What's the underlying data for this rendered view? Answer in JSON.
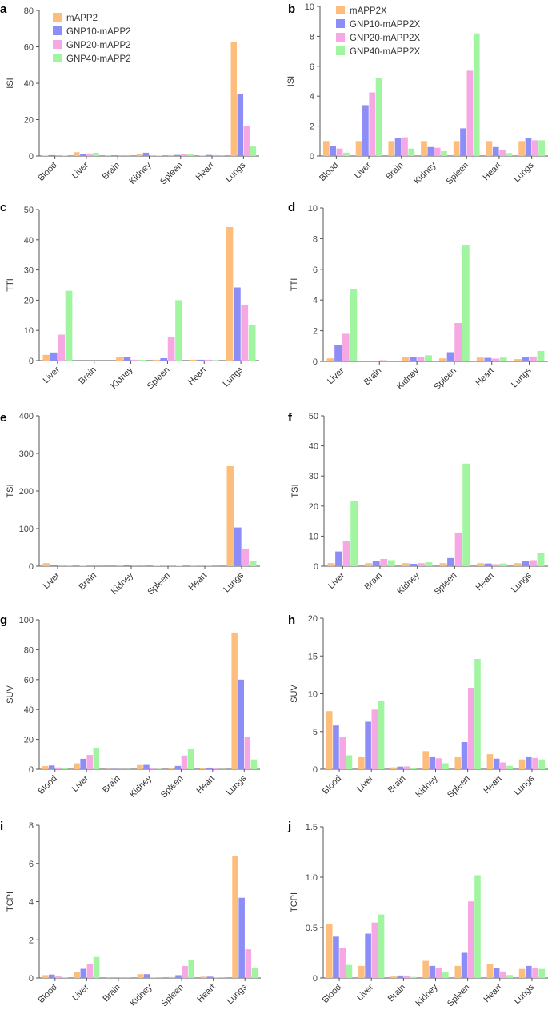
{
  "colors": {
    "series": [
      "#fdbd7d",
      "#8d8df7",
      "#f5a8e3",
      "#a1f5a1"
    ]
  },
  "chart_data": [
    {
      "panel": "a",
      "type": "bar",
      "ylabel": "ISI",
      "ylim": [
        0,
        80
      ],
      "yticks": [
        0,
        20,
        40,
        60,
        80
      ],
      "categories": [
        "Blood",
        "Liver",
        "Brain",
        "Kidney",
        "Spleen",
        "Heart",
        "Lungs"
      ],
      "legend": "top-left",
      "series": [
        {
          "name": "mAPP2",
          "values": [
            0.2,
            2.1,
            0.4,
            1.0,
            0.5,
            0.3,
            62.8
          ]
        },
        {
          "name": "GNP10-mAPP2",
          "values": [
            0.5,
            1.2,
            0.4,
            1.8,
            0.6,
            0.6,
            34.2
          ]
        },
        {
          "name": "GNP20-mAPP2",
          "values": [
            0.1,
            1.4,
            0.1,
            0.4,
            1.0,
            0.5,
            16.5
          ]
        },
        {
          "name": "GNP40-mAPP2",
          "values": [
            0.2,
            1.8,
            0.1,
            0.2,
            0.9,
            0.1,
            5.2
          ]
        }
      ]
    },
    {
      "panel": "b",
      "type": "bar",
      "ylabel": "ISI",
      "ylim": [
        0,
        10
      ],
      "yticks": [
        0,
        2,
        4,
        6,
        8,
        10
      ],
      "categories": [
        "Blood",
        "Liver",
        "Brain",
        "Kidney",
        "Spleen",
        "Heart",
        "Lungs"
      ],
      "legend": "top-left",
      "series": [
        {
          "name": "mAPP2X",
          "values": [
            1.0,
            1.0,
            1.0,
            1.0,
            1.0,
            1.0,
            1.0
          ]
        },
        {
          "name": "GNP10-mAPP2X",
          "values": [
            0.65,
            3.4,
            1.2,
            0.6,
            1.85,
            0.6,
            1.18
          ]
        },
        {
          "name": "GNP20-mAPP2X",
          "values": [
            0.5,
            4.25,
            1.25,
            0.55,
            5.7,
            0.4,
            1.05
          ]
        },
        {
          "name": "GNP40-mAPP2X",
          "values": [
            0.22,
            5.2,
            0.5,
            0.32,
            8.2,
            0.2,
            1.05
          ]
        }
      ]
    },
    {
      "panel": "c",
      "type": "bar",
      "ylabel": "TTI",
      "ylim": [
        0,
        50
      ],
      "yticks": [
        0,
        10,
        20,
        30,
        40,
        50
      ],
      "categories": [
        "Liver",
        "Brain",
        "Kidney",
        "Spleen",
        "Heart",
        "Lungs"
      ],
      "series": [
        {
          "name": "mAPP2",
          "values": [
            1.9,
            0.0,
            1.3,
            0.3,
            0.3,
            44.2
          ]
        },
        {
          "name": "GNP10-mAPP2",
          "values": [
            2.7,
            0.0,
            1.1,
            0.8,
            0.3,
            24.2
          ]
        },
        {
          "name": "GNP20-mAPP2",
          "values": [
            8.6,
            0.0,
            0.3,
            7.8,
            0.3,
            18.4
          ]
        },
        {
          "name": "GNP40-mAPP2",
          "values": [
            23.1,
            0.0,
            0.3,
            20.0,
            0.1,
            11.7
          ]
        }
      ]
    },
    {
      "panel": "d",
      "type": "bar",
      "ylabel": "TTI",
      "ylim": [
        0,
        10
      ],
      "yticks": [
        0,
        2,
        4,
        6,
        8,
        10
      ],
      "categories": [
        "Liver",
        "Brain",
        "Kidney",
        "Spleen",
        "Heart",
        "Lungs"
      ],
      "series": [
        {
          "name": "mAPP2X",
          "values": [
            0.2,
            0.03,
            0.3,
            0.2,
            0.25,
            0.15
          ]
        },
        {
          "name": "GNP10-mAPP2X",
          "values": [
            1.07,
            0.05,
            0.27,
            0.6,
            0.23,
            0.28
          ]
        },
        {
          "name": "GNP20-mAPP2X",
          "values": [
            1.8,
            0.08,
            0.3,
            2.5,
            0.18,
            0.32
          ]
        },
        {
          "name": "GNP40-mAPP2X",
          "values": [
            4.7,
            0.05,
            0.4,
            7.6,
            0.25,
            0.68
          ]
        }
      ]
    },
    {
      "panel": "e",
      "type": "bar",
      "ylabel": "TSI",
      "ylim": [
        0,
        400
      ],
      "yticks": [
        0,
        100,
        200,
        300,
        400
      ],
      "categories": [
        "Liver",
        "Brain",
        "Kidney",
        "Spleen",
        "Heart",
        "Lungs"
      ],
      "series": [
        {
          "name": "mAPP2",
          "values": [
            8.0,
            1.0,
            3.5,
            1.0,
            0.8,
            266.0
          ]
        },
        {
          "name": "GNP10-mAPP2",
          "values": [
            2.5,
            0.3,
            3.0,
            1.0,
            0.8,
            103.0
          ]
        },
        {
          "name": "GNP20-mAPP2",
          "values": [
            4.0,
            0.2,
            0.5,
            2.5,
            0.8,
            47.0
          ]
        },
        {
          "name": "GNP40-mAPP2",
          "values": [
            4.0,
            0.1,
            0.3,
            1.0,
            0.2,
            13.0
          ]
        }
      ]
    },
    {
      "panel": "f",
      "type": "bar",
      "ylabel": "TSI",
      "ylim": [
        0,
        50
      ],
      "yticks": [
        0,
        10,
        20,
        30,
        40,
        50
      ],
      "categories": [
        "Liver",
        "Brain",
        "Kidney",
        "Spleen",
        "Heart",
        "Lungs"
      ],
      "series": [
        {
          "name": "mAPP2X",
          "values": [
            1.0,
            1.0,
            1.0,
            1.0,
            1.0,
            1.0
          ]
        },
        {
          "name": "GNP10-mAPP2X",
          "values": [
            4.9,
            1.8,
            0.8,
            2.7,
            0.9,
            1.7
          ]
        },
        {
          "name": "GNP20-mAPP2X",
          "values": [
            8.4,
            2.4,
            1.0,
            11.2,
            0.7,
            2.0
          ]
        },
        {
          "name": "GNP40-mAPP2X",
          "values": [
            21.7,
            2.0,
            1.3,
            34.1,
            0.9,
            4.3
          ]
        }
      ]
    },
    {
      "panel": "g",
      "type": "bar",
      "ylabel": "SUV",
      "ylim": [
        0,
        100
      ],
      "yticks": [
        0,
        20,
        40,
        60,
        80,
        100
      ],
      "categories": [
        "Blood",
        "Liver",
        "Brain",
        "Kidney",
        "Spleen",
        "Heart",
        "Lungs"
      ],
      "series": [
        {
          "name": "mAPP2",
          "values": [
            2.1,
            4.0,
            0.1,
            2.8,
            0.8,
            1.0,
            91.5
          ]
        },
        {
          "name": "GNP10-mAPP2",
          "values": [
            2.5,
            7.0,
            0.1,
            2.9,
            2.2,
            1.1,
            60.0
          ]
        },
        {
          "name": "GNP20-mAPP2",
          "values": [
            1.2,
            9.6,
            0.1,
            0.5,
            9.2,
            0.5,
            21.4
          ]
        },
        {
          "name": "GNP40-mAPP2",
          "values": [
            0.6,
            14.5,
            0.1,
            0.2,
            13.5,
            0.1,
            6.6
          ]
        }
      ]
    },
    {
      "panel": "h",
      "type": "bar",
      "ylabel": "SUV",
      "ylim": [
        0,
        20
      ],
      "yticks": [
        0,
        5,
        10,
        15,
        20
      ],
      "categories": [
        "Blood",
        "Liver",
        "Brain",
        "Kidney",
        "Spleen",
        "Heart",
        "Lungs"
      ],
      "series": [
        {
          "name": "mAPP2X",
          "values": [
            7.7,
            1.7,
            0.25,
            2.4,
            1.7,
            2.0,
            1.3
          ]
        },
        {
          "name": "GNP10-mAPP2X",
          "values": [
            5.8,
            6.3,
            0.35,
            1.7,
            3.6,
            1.4,
            1.7
          ]
        },
        {
          "name": "GNP20-mAPP2X",
          "values": [
            4.3,
            7.9,
            0.38,
            1.45,
            10.8,
            0.9,
            1.5
          ]
        },
        {
          "name": "GNP40-mAPP2X",
          "values": [
            1.85,
            9.0,
            0.15,
            0.8,
            14.6,
            0.45,
            1.3
          ]
        }
      ]
    },
    {
      "panel": "i",
      "type": "bar",
      "ylabel": "TCPI",
      "ylim": [
        0,
        8
      ],
      "yticks": [
        0,
        2,
        4,
        6,
        8
      ],
      "categories": [
        "Blood",
        "Liver",
        "Brain",
        "Kidney",
        "Spleen",
        "Heart",
        "Lungs"
      ],
      "series": [
        {
          "name": "mAPP2",
          "values": [
            0.15,
            0.3,
            0.01,
            0.2,
            0.05,
            0.07,
            6.4
          ]
        },
        {
          "name": "GNP10-mAPP2",
          "values": [
            0.18,
            0.48,
            0.01,
            0.2,
            0.15,
            0.07,
            4.2
          ]
        },
        {
          "name": "GNP20-mAPP2",
          "values": [
            0.08,
            0.72,
            0.01,
            0.03,
            0.63,
            0.03,
            1.5
          ]
        },
        {
          "name": "GNP40-mAPP2",
          "values": [
            0.04,
            1.1,
            0.01,
            0.01,
            0.95,
            0.01,
            0.55
          ]
        }
      ]
    },
    {
      "panel": "j",
      "type": "bar",
      "ylabel": "TCPI",
      "ylim": [
        0,
        1.5
      ],
      "yticks": [
        "0",
        "0.5",
        "1.0",
        "1.5"
      ],
      "yticks_values": [
        0,
        0.5,
        1.0,
        1.5
      ],
      "categories": [
        "Blood",
        "Liver",
        "Brain",
        "Kidney",
        "Spleen",
        "Heart",
        "Lungs"
      ],
      "series": [
        {
          "name": "mAPP2X",
          "values": [
            0.54,
            0.12,
            0.015,
            0.17,
            0.12,
            0.14,
            0.09
          ]
        },
        {
          "name": "GNP10-mAPP2X",
          "values": [
            0.41,
            0.44,
            0.025,
            0.12,
            0.25,
            0.1,
            0.12
          ]
        },
        {
          "name": "GNP20-mAPP2X",
          "values": [
            0.3,
            0.55,
            0.025,
            0.1,
            0.76,
            0.065,
            0.1
          ]
        },
        {
          "name": "GNP40-mAPP2X",
          "values": [
            0.13,
            0.63,
            0.01,
            0.055,
            1.02,
            0.03,
            0.09
          ]
        }
      ]
    }
  ]
}
